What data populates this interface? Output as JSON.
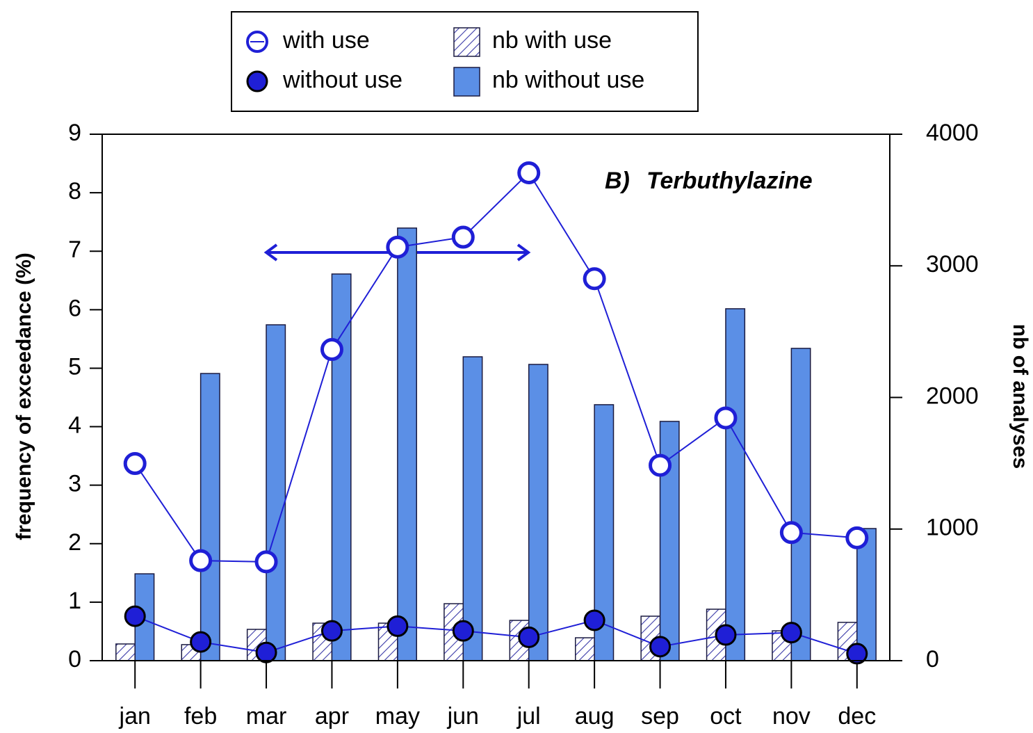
{
  "chart_data": {
    "type": "bar",
    "panel_label": "B)",
    "annotation": "Terbuthylazine",
    "ylabel": "frequency of exceedance (%)",
    "y2label": "nb of analyses",
    "categories": [
      "jan",
      "feb",
      "mar",
      "apr",
      "may",
      "jun",
      "jul",
      "aug",
      "sep",
      "oct",
      "nov",
      "dec"
    ],
    "series": [
      {
        "name": "with use",
        "type": "line",
        "axis": "y",
        "marker": "open",
        "color": "#1f1fd6",
        "values": [
          3.37,
          1.71,
          1.69,
          5.32,
          7.07,
          7.24,
          8.34,
          6.53,
          3.34,
          4.15,
          2.19,
          2.1
        ]
      },
      {
        "name": "without use",
        "type": "line",
        "axis": "y",
        "marker": "filled",
        "color": "#1f1fd6",
        "values": [
          0.76,
          0.32,
          0.14,
          0.51,
          0.59,
          0.51,
          0.4,
          0.69,
          0.24,
          0.44,
          0.48,
          0.12
        ]
      },
      {
        "name": "nb with use",
        "type": "bar",
        "axis": "y2",
        "pattern": "hatch",
        "color": "#3a3aa8",
        "values": [
          127,
          122,
          238,
          285,
          285,
          433,
          306,
          174,
          338,
          391,
          227,
          291
        ]
      },
      {
        "name": "nb without use",
        "type": "bar",
        "axis": "y2",
        "pattern": "solid",
        "color": "#5b8fe6",
        "values": [
          660,
          2182,
          2552,
          2938,
          3287,
          2309,
          2251,
          1945,
          1818,
          2674,
          2373,
          1004
        ]
      }
    ],
    "ylim": [
      0,
      9
    ],
    "yticks": [
      0,
      1,
      2,
      3,
      4,
      5,
      6,
      7,
      8,
      9
    ],
    "y2lim": [
      0,
      4000
    ],
    "y2ticks": [
      0,
      1000,
      2000,
      3000,
      4000
    ],
    "grid": false
  }
}
